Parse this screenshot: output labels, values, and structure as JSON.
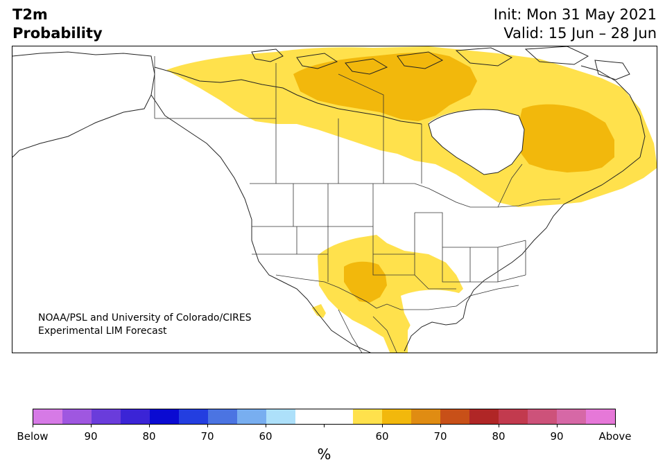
{
  "header": {
    "variable": "T2m",
    "product": "Probability",
    "init": "Init: Mon 31 May 2021",
    "valid": "Valid: 15 Jun – 28 Jun"
  },
  "map": {
    "credit_line1": "NOAA/PSL and University of Colorado/CIRES",
    "credit_line2": "Experimental LIM Forecast",
    "colors": {
      "above_55_65": "#ffe14c",
      "above_65_70": "#f2b80c",
      "land_border": "#333333",
      "coast": "#222222"
    }
  },
  "colorbar": {
    "unit": "%",
    "colors": [
      "#d67ae6",
      "#9f57e0",
      "#6a3cdb",
      "#3b24d6",
      "#0a0ad2",
      "#233ee0",
      "#4b74e2",
      "#78aef0",
      "#ade0fa",
      "#ffffff",
      "#ffffff",
      "#ffe14c",
      "#f2b80c",
      "#e08c12",
      "#c85018",
      "#b02626",
      "#c23a4e",
      "#cd527a",
      "#d668a6",
      "#e678d8"
    ],
    "tick_labels": [
      "Below",
      "90",
      "80",
      "70",
      "60",
      "",
      "60",
      "70",
      "80",
      "90",
      "Above"
    ]
  }
}
